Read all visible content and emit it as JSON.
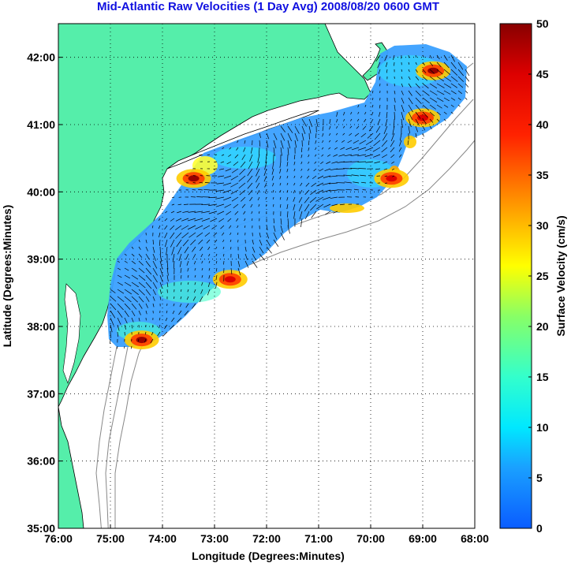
{
  "title": "Mid-Atlantic Raw Velocities (1 Day Avg) 2008/08/20 0600 GMT",
  "xlabel": "Longitude (Degrees:Minutes)",
  "ylabel": "Latitude (Degrees:Minutes)",
  "colorbar_label": "Surface Velocity (cm/s)",
  "x_ticks": [
    "76:00",
    "75:00",
    "74:00",
    "73:00",
    "72:00",
    "71:00",
    "70:00",
    "69:00",
    "68:00"
  ],
  "y_ticks": [
    "35:00",
    "36:00",
    "37:00",
    "38:00",
    "39:00",
    "40:00",
    "41:00",
    "42:00"
  ],
  "colorbar_ticks": [
    "0",
    "5",
    "10",
    "15",
    "20",
    "25",
    "30",
    "35",
    "40",
    "45",
    "50"
  ],
  "colors": {
    "land": "#55eeaa",
    "title": "#1010e0",
    "bathymetry": "#888888",
    "typical_velocity": "#3aa0ff"
  },
  "map_data": {
    "lon_range": [
      -76,
      -68
    ],
    "lat_range": [
      35,
      42.5
    ],
    "velocity_range_cm_s": [
      0,
      50
    ],
    "grid_on": true,
    "hot_spots": [
      {
        "lon": -68.8,
        "lat": 41.8,
        "speed": 50
      },
      {
        "lon": -74.4,
        "lat": 37.8,
        "speed": 45
      },
      {
        "lon": -72.7,
        "lat": 38.7,
        "speed": 40
      },
      {
        "lon": -73.4,
        "lat": 40.2,
        "speed": 45
      },
      {
        "lon": -69.0,
        "lat": 41.1,
        "speed": 38
      },
      {
        "lon": -69.6,
        "lat": 40.2,
        "speed": 38
      }
    ]
  }
}
